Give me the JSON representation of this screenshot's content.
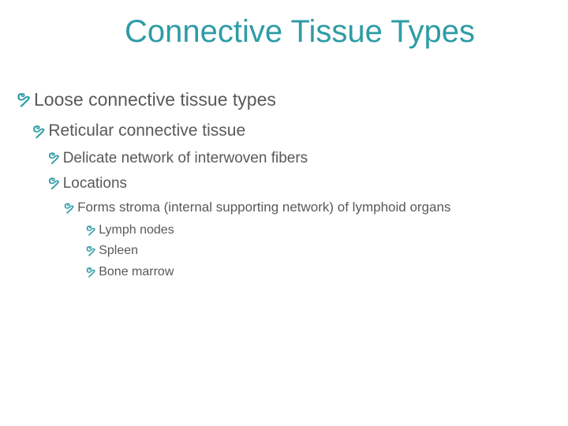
{
  "colors": {
    "title": "#2e9ca6",
    "marker": "#2e9ca6",
    "text": "#595959",
    "background": "#ffffff"
  },
  "title": "Connective Tissue Types",
  "bullets": {
    "l1": "Loose connective tissue types",
    "l2": "Reticular connective tissue",
    "l3a": "Delicate network of interwoven fibers",
    "l3b": "Locations",
    "l4": "Forms stroma (internal supporting network) of lymphoid organs",
    "l5a": "Lymph nodes",
    "l5b": "Spleen",
    "l5c": "Bone marrow"
  },
  "typography": {
    "title_fontsize": 40,
    "lvl1_fontsize": 23,
    "lvl2_fontsize": 21,
    "lvl3_fontsize": 19,
    "lvl4_fontsize": 17,
    "lvl5_fontsize": 16,
    "font_family": "Arial"
  },
  "marker_glyph": "ຯ"
}
